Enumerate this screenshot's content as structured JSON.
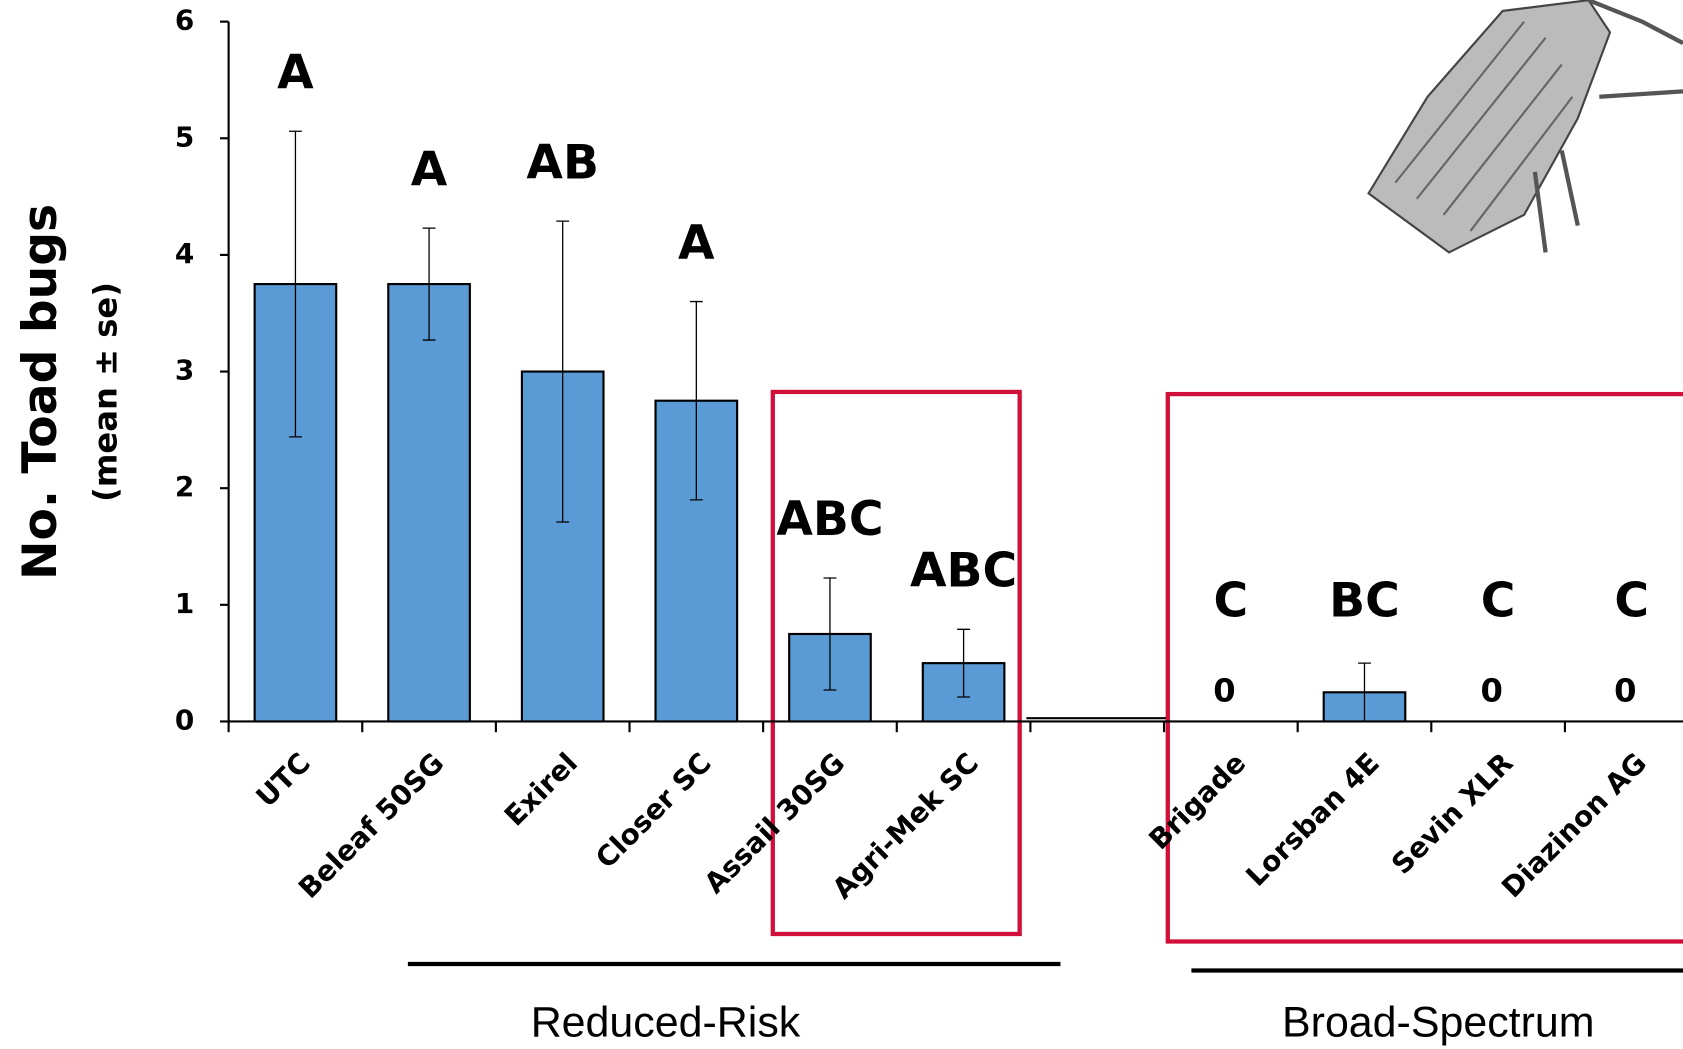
{
  "chart_data": {
    "type": "bar",
    "y_label": "No. Toad bugs",
    "y_sublabel": "(mean ± se)",
    "categories": [
      "UTC",
      "Beleaf 50SG",
      "Exirel",
      "Closer SC",
      "Assail 30SG",
      "Agri-Mek SC",
      null,
      "Brigade",
      "Lorsban 4E",
      "Sevin XLR",
      "Diazinon AG"
    ],
    "values": [
      3.75,
      3.75,
      3.0,
      2.75,
      0.75,
      0.5,
      0,
      0,
      0.25,
      0,
      0
    ],
    "errors": [
      1.31,
      0.48,
      1.29,
      0.85,
      0.48,
      0.29,
      null,
      null,
      0.25,
      null,
      null
    ],
    "letters": [
      "A",
      "A",
      "AB",
      "A",
      "ABC",
      "ABC",
      null,
      "C",
      "BC",
      "C",
      "C"
    ],
    "zero_labels": [
      false,
      false,
      false,
      false,
      false,
      false,
      false,
      true,
      false,
      true,
      true
    ],
    "color": "#5b9bd5",
    "ylim": [
      0,
      6
    ],
    "yticks": [
      0,
      1,
      2,
      3,
      4,
      5,
      6
    ],
    "groups": [
      {
        "label": "Reduced-Risk"
      },
      {
        "label": "Broad-Spectrum"
      }
    ]
  }
}
